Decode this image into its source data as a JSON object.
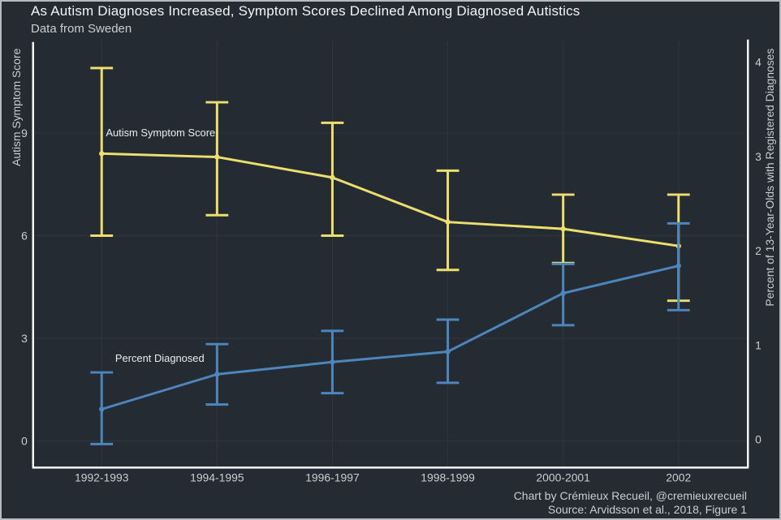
{
  "header": {
    "title": "As Autism Diagnoses Increased, Symptom Scores Declined Among Diagnosed Autistics",
    "subtitle": "Data from Sweden"
  },
  "footer": {
    "credit": "Chart by Crémieux Recueil, @cremieuxrecueil",
    "source": "Source: Arvidsson et al., 2018, Figure 1"
  },
  "colors": {
    "background": "#252B33",
    "frame_border": "#B6BBC1",
    "gridline": "#2E343D",
    "axis_line": "#F5F5F5",
    "title_text": "#F2F4F6",
    "muted_text": "#C9CDD2",
    "symptom_series": "#EDDF6D",
    "diagnosed_series": "#4C86BC"
  },
  "chart_data": {
    "type": "line",
    "title": "As Autism Diagnoses Increased, Symptom Scores Declined Among Diagnosed Autistics",
    "subtitle": "Data from Sweden",
    "categories": [
      "1992-1993",
      "1994-1995",
      "1996-1997",
      "1998-1999",
      "2000-2001",
      "2002"
    ],
    "grid": true,
    "error_bars": true,
    "legend_position": "inline-labels",
    "left_axis": {
      "label": "Autism Symptom Score",
      "ticks": [
        0,
        3,
        6,
        9
      ],
      "range": [
        -0.8,
        11.7
      ]
    },
    "right_axis": {
      "label": "Percent of 13-Year-Olds with Registered Diagnoses",
      "ticks": [
        0,
        1,
        2,
        3,
        4
      ],
      "range": [
        -0.3,
        4.2
      ]
    },
    "series": [
      {
        "name": "Autism Symptom Score",
        "inline_label": "Autism Symptom Score",
        "axis": "left",
        "color": "#EDDF6D",
        "values": [
          8.4,
          8.3,
          7.7,
          6.4,
          6.2,
          5.7
        ],
        "ci_low": [
          6.0,
          6.6,
          6.0,
          5.0,
          5.2,
          4.1
        ],
        "ci_high": [
          10.9,
          9.9,
          9.3,
          7.9,
          7.2,
          7.2
        ]
      },
      {
        "name": "Percent Diagnosed",
        "inline_label": "Percent Diagnosed",
        "axis": "right",
        "color": "#4C86BC",
        "values": [
          0.32,
          0.69,
          0.82,
          0.93,
          1.55,
          1.84
        ],
        "ci_low": [
          -0.05,
          0.37,
          0.49,
          0.6,
          1.21,
          1.37
        ],
        "ci_high": [
          0.71,
          1.01,
          1.15,
          1.27,
          1.86,
          2.29
        ]
      }
    ]
  }
}
